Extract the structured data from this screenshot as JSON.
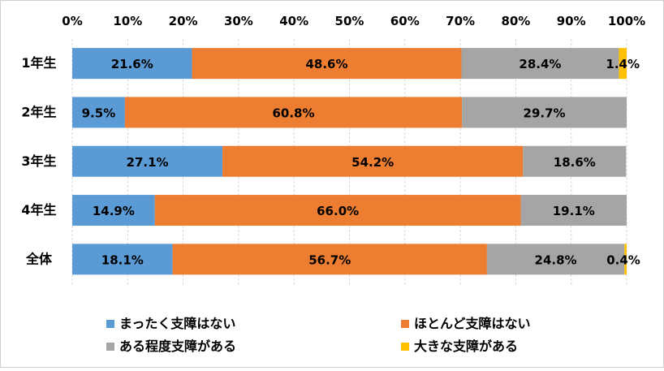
{
  "chart_data": {
    "type": "bar",
    "orientation": "horizontal",
    "stacked": true,
    "percent_stacked": true,
    "title": "",
    "xlabel": "",
    "ylabel": "",
    "xlim": [
      0,
      100
    ],
    "x_ticks": [
      "0%",
      "10%",
      "20%",
      "30%",
      "40%",
      "50%",
      "60%",
      "70%",
      "80%",
      "90%",
      "100%"
    ],
    "grid": true,
    "legend_position": "bottom",
    "categories": [
      "1年生",
      "2年生",
      "3年生",
      "4年生",
      "全体"
    ],
    "series": [
      {
        "name": "まったく支障はない",
        "color": "#5b9bd5",
        "values": [
          21.6,
          9.5,
          27.1,
          14.9,
          18.1
        ]
      },
      {
        "name": "ほとんど支障はない",
        "color": "#ed7d31",
        "values": [
          48.6,
          60.8,
          54.2,
          66.0,
          56.7
        ]
      },
      {
        "name": "ある程度支障がある",
        "color": "#a5a5a5",
        "values": [
          28.4,
          29.7,
          18.6,
          19.1,
          24.8
        ]
      },
      {
        "name": "大きな支障がある",
        "color": "#ffc000",
        "values": [
          1.4,
          null,
          null,
          null,
          0.4
        ]
      }
    ]
  }
}
